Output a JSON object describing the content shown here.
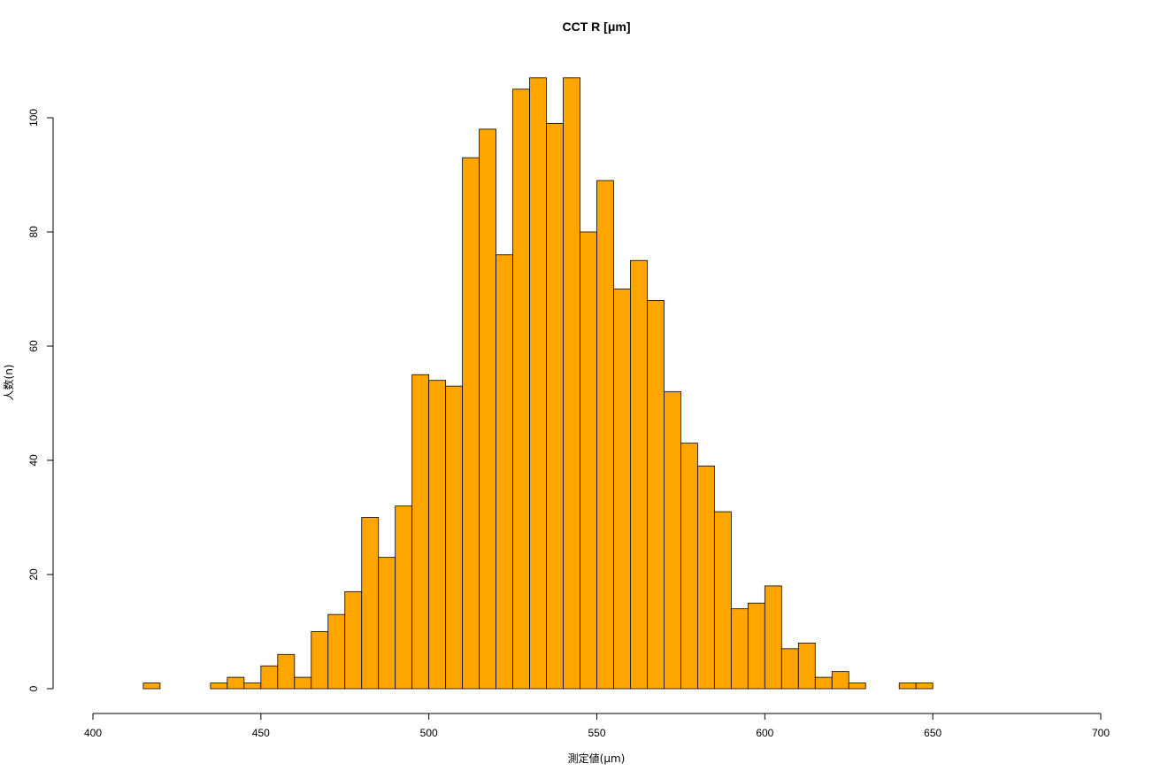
{
  "chart_data": {
    "type": "bar",
    "title": "CCT R [μm]",
    "xlabel": "測定値(μm)",
    "ylabel": "人数(n)",
    "bar_color": "#FFA500",
    "bar_border_color": "#000000",
    "bin_width": 5,
    "bin_starts": [
      415,
      420,
      425,
      430,
      435,
      440,
      445,
      450,
      455,
      460,
      465,
      470,
      475,
      480,
      485,
      490,
      495,
      500,
      505,
      510,
      515,
      520,
      525,
      530,
      535,
      540,
      545,
      550,
      555,
      560,
      565,
      570,
      575,
      580,
      585,
      590,
      595,
      600,
      605,
      610,
      615,
      620,
      625,
      630,
      635,
      640,
      645
    ],
    "values": [
      1,
      0,
      0,
      0,
      1,
      2,
      1,
      4,
      6,
      2,
      10,
      13,
      17,
      30,
      23,
      32,
      55,
      54,
      53,
      93,
      98,
      76,
      105,
      107,
      99,
      107,
      80,
      89,
      70,
      75,
      68,
      52,
      43,
      39,
      31,
      14,
      15,
      18,
      7,
      8,
      2,
      3,
      1,
      0,
      0,
      1,
      1
    ],
    "xlim": [
      400,
      700
    ],
    "ylim": [
      0,
      112
    ],
    "x_ticks": [
      400,
      450,
      500,
      550,
      600,
      650,
      700
    ],
    "y_ticks": [
      0,
      20,
      40,
      60,
      80,
      100
    ],
    "grid": false
  }
}
